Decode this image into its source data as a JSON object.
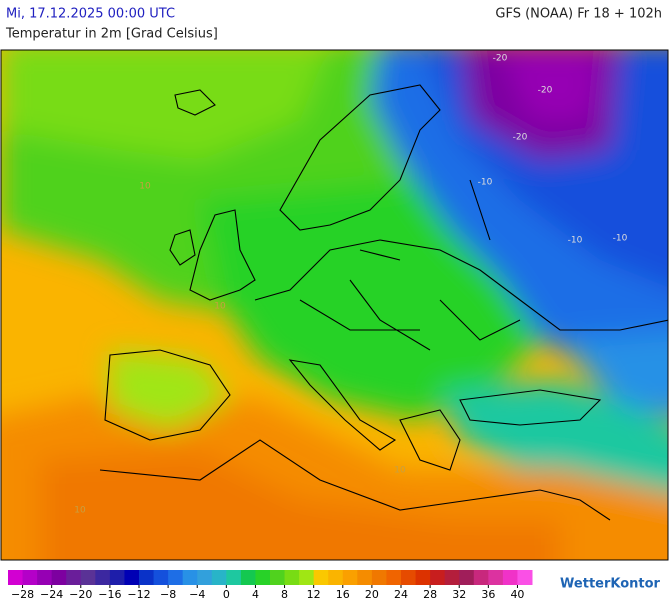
{
  "header": {
    "date": "Mi, 17.12.2025 00:00 UTC",
    "model": "GFS (NOAA) Fr 18 + 102h",
    "subtitle": "Temperatur in 2m [Grad Celsius]"
  },
  "map": {
    "contour_labels": [
      "-20",
      "-20",
      "-20",
      "-10",
      "-10",
      "-10",
      "10",
      "10",
      "10",
      "10"
    ]
  },
  "legend": {
    "range": [
      -30,
      42
    ],
    "colors": [
      "#d200d2",
      "#b400c8",
      "#9600b4",
      "#7d00a0",
      "#6a1e9a",
      "#5a3296",
      "#3c28a0",
      "#1e1eaa",
      "#0000b4",
      "#0a32c8",
      "#1450dc",
      "#1e6ee6",
      "#2891e6",
      "#32a0dc",
      "#28b4c8",
      "#1ec8a0",
      "#14c850",
      "#28d228",
      "#50d21e",
      "#78dc14",
      "#a0e614",
      "#fac800",
      "#fab400",
      "#faa000",
      "#f58c00",
      "#f07800",
      "#f06400",
      "#e64b00",
      "#dc3200",
      "#c81e1e",
      "#b41e3c",
      "#a01e5a",
      "#c8287d",
      "#dc32a0",
      "#f032c8",
      "#fa50e6"
    ],
    "ticks": [
      {
        "value": -28,
        "label": "−28"
      },
      {
        "value": -24,
        "label": "−24"
      },
      {
        "value": -20,
        "label": "−20"
      },
      {
        "value": -16,
        "label": "−16"
      },
      {
        "value": -12,
        "label": "−12"
      },
      {
        "value": -8,
        "label": "−8"
      },
      {
        "value": -4,
        "label": "−4"
      },
      0,
      4,
      8,
      12,
      16,
      20,
      24,
      28,
      32,
      36,
      40
    ]
  },
  "logo": "WetterKontor"
}
